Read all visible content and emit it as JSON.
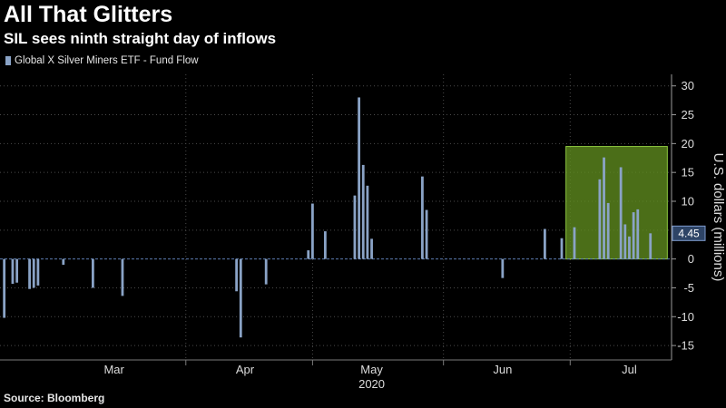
{
  "header": {
    "title": "All That Glitters",
    "subtitle": "SIL sees ninth straight day of inflows"
  },
  "footer": {
    "source": "Source: Bloomberg"
  },
  "colors": {
    "background": "#000000",
    "bar": "#8aa3c6",
    "highlight_fill": "#5e8a1e",
    "highlight_border": "#8cc63f",
    "grid": "#4a4a4a",
    "zero_line": "#5b7bb0",
    "last_value_box": "#2e4466"
  },
  "chart_data": {
    "type": "bar",
    "title": "All That Glitters",
    "subtitle": "SIL sees ninth straight day of inflows",
    "series": [
      {
        "name": "Global X Silver Miners ETF - Fund Flow",
        "points": [
          {
            "x": "2020-02-18",
            "y": -10.2
          },
          {
            "x": "2020-02-20",
            "y": -4.3
          },
          {
            "x": "2020-02-21",
            "y": -4.1
          },
          {
            "x": "2020-02-24",
            "y": -5.2
          },
          {
            "x": "2020-02-25",
            "y": -5.0
          },
          {
            "x": "2020-02-26",
            "y": -4.6
          },
          {
            "x": "2020-03-03",
            "y": -1.0
          },
          {
            "x": "2020-03-10",
            "y": -5.0
          },
          {
            "x": "2020-03-17",
            "y": -6.4
          },
          {
            "x": "2020-04-13",
            "y": -5.6
          },
          {
            "x": "2020-04-14",
            "y": -13.6
          },
          {
            "x": "2020-04-20",
            "y": -4.4
          },
          {
            "x": "2020-04-30",
            "y": 1.5
          },
          {
            "x": "2020-05-01",
            "y": 9.6
          },
          {
            "x": "2020-05-04",
            "y": 4.8
          },
          {
            "x": "2020-05-11",
            "y": 11.0
          },
          {
            "x": "2020-05-12",
            "y": 28.0
          },
          {
            "x": "2020-05-13",
            "y": 16.3
          },
          {
            "x": "2020-05-14",
            "y": 12.7
          },
          {
            "x": "2020-05-15",
            "y": 3.5
          },
          {
            "x": "2020-05-27",
            "y": 14.3
          },
          {
            "x": "2020-05-28",
            "y": 8.5
          },
          {
            "x": "2020-06-15",
            "y": -3.3
          },
          {
            "x": "2020-06-25",
            "y": 5.2
          },
          {
            "x": "2020-06-29",
            "y": 3.6
          },
          {
            "x": "2020-07-02",
            "y": 5.5
          },
          {
            "x": "2020-07-08",
            "y": 13.8
          },
          {
            "x": "2020-07-09",
            "y": 17.6
          },
          {
            "x": "2020-07-10",
            "y": 9.7
          },
          {
            "x": "2020-07-13",
            "y": 15.9
          },
          {
            "x": "2020-07-14",
            "y": 6.0
          },
          {
            "x": "2020-07-15",
            "y": 3.9
          },
          {
            "x": "2020-07-16",
            "y": 8.1
          },
          {
            "x": "2020-07-17",
            "y": 8.6
          },
          {
            "x": "2020-07-20",
            "y": 4.45
          }
        ]
      }
    ],
    "x_ticks": [
      {
        "date": "2020-03-15",
        "label": "Mar"
      },
      {
        "date": "2020-04-15",
        "label": "Apr"
      },
      {
        "date": "2020-05-15",
        "label": "May"
      },
      {
        "date": "2020-06-15",
        "label": "Jun"
      },
      {
        "date": "2020-07-15",
        "label": "Jul"
      }
    ],
    "x_year_label": "2020",
    "x_gridlines": [
      "2020-04-01",
      "2020-05-01",
      "2020-06-01",
      "2020-07-01"
    ],
    "xlim": [
      "2020-02-17",
      "2020-07-25"
    ],
    "ylabel": "U.S. dollars (millions)",
    "yticks": [
      30,
      25,
      20,
      15,
      10,
      5,
      0,
      -5,
      -10,
      -15
    ],
    "ylim": [
      -17.5,
      32
    ],
    "grid": true,
    "y_axis_side": "right",
    "legend_position": "top-left",
    "last_value_label": "4.45",
    "highlight": {
      "x_start": "2020-06-30",
      "x_end": "2020-07-24",
      "y_top": 19.5,
      "y_bottom": 0
    }
  }
}
